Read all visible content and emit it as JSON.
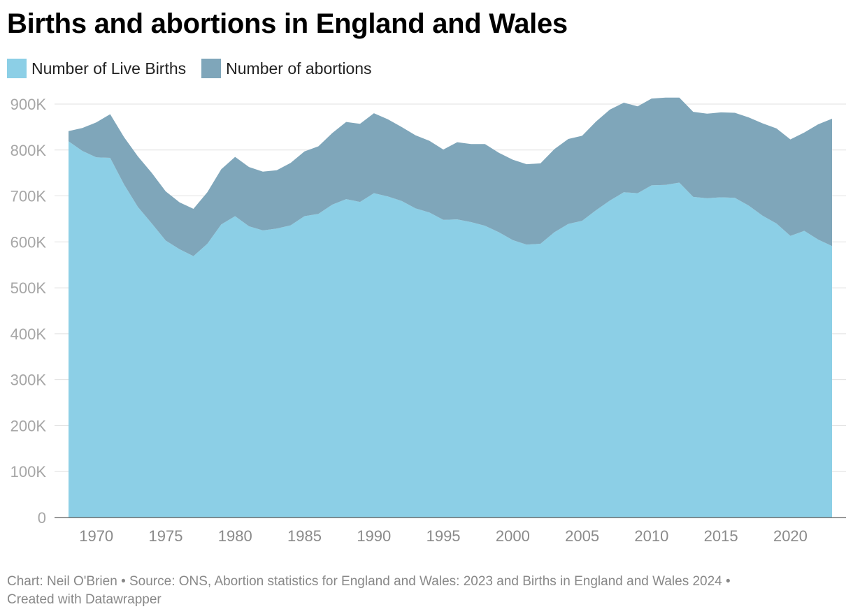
{
  "chart_data": {
    "type": "area",
    "stacked": true,
    "title": "Births and abortions in England and Wales",
    "xlabel": "",
    "ylabel": "",
    "ylim": [
      0,
      900000
    ],
    "xlim": [
      1968,
      2023
    ],
    "grid": true,
    "legend_position": "top-left",
    "x": [
      1968,
      1969,
      1970,
      1971,
      1972,
      1973,
      1974,
      1975,
      1976,
      1977,
      1978,
      1979,
      1980,
      1981,
      1982,
      1983,
      1984,
      1985,
      1986,
      1987,
      1988,
      1989,
      1990,
      1991,
      1992,
      1993,
      1994,
      1995,
      1996,
      1997,
      1998,
      1999,
      2000,
      2001,
      2002,
      2003,
      2004,
      2005,
      2006,
      2007,
      2008,
      2009,
      2010,
      2011,
      2012,
      2013,
      2014,
      2015,
      2016,
      2017,
      2018,
      2019,
      2020,
      2021,
      2022,
      2023
    ],
    "series": [
      {
        "name": "Number of Live Births",
        "color": "#8ccfe6",
        "values": [
          819000,
          798000,
          784000,
          783000,
          725000,
          676000,
          640000,
          603000,
          584000,
          569000,
          596000,
          638000,
          656000,
          634000,
          625000,
          629000,
          636000,
          656000,
          661000,
          681000,
          693000,
          687000,
          706000,
          699000,
          689000,
          673000,
          664000,
          648000,
          649000,
          643000,
          635000,
          621000,
          604000,
          594000,
          596000,
          621000,
          639000,
          646000,
          669000,
          690000,
          708000,
          706000,
          723000,
          724000,
          729000,
          698000,
          695000,
          697000,
          696000,
          679000,
          657000,
          640000,
          613000,
          624000,
          605000,
          591000
        ]
      },
      {
        "name": "Number of abortions",
        "color": "#7fa6ba",
        "values": [
          22000,
          50000,
          76000,
          95000,
          103000,
          110000,
          110000,
          107000,
          102000,
          103000,
          112000,
          120000,
          129000,
          129000,
          128000,
          127000,
          136000,
          141000,
          147000,
          156000,
          168000,
          170000,
          174000,
          168000,
          161000,
          159000,
          156000,
          153000,
          168000,
          170000,
          178000,
          173000,
          175000,
          175000,
          175000,
          181000,
          185000,
          185000,
          193000,
          198000,
          195000,
          189000,
          189000,
          190000,
          185000,
          185000,
          184000,
          185000,
          185000,
          192000,
          201000,
          207000,
          210000,
          214000,
          251000,
          277000
        ]
      }
    ],
    "y_ticks": [
      0,
      100000,
      200000,
      300000,
      400000,
      500000,
      600000,
      700000,
      800000,
      900000
    ],
    "y_tick_labels": [
      "0",
      "100K",
      "200K",
      "300K",
      "400K",
      "500K",
      "600K",
      "700K",
      "800K",
      "900K"
    ],
    "x_ticks": [
      1970,
      1975,
      1980,
      1985,
      1990,
      1995,
      2000,
      2005,
      2010,
      2015,
      2020
    ],
    "x_tick_labels": [
      "1970",
      "1975",
      "1980",
      "1985",
      "1990",
      "1995",
      "2000",
      "2005",
      "2010",
      "2015",
      "2020"
    ]
  },
  "legend": {
    "births_label": "Number of Live Births",
    "abortions_label": "Number of abortions",
    "births_color": "#8ccfe6",
    "abortions_color": "#7fa6ba"
  },
  "footer": {
    "source_line": "Chart: Neil O'Brien • Source: ONS, Abortion statistics for England and Wales: 2023 and Births in England and Wales 2024 •",
    "credit_line": "Created with Datawrapper"
  }
}
